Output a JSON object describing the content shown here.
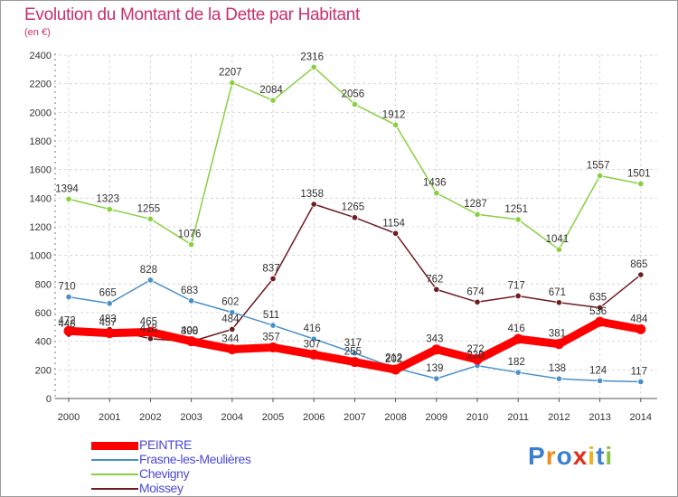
{
  "header": {
    "title": "Evolution du Montant de la Dette par Habitant",
    "subtitle": "(en €)"
  },
  "brand": {
    "text": "Proxiti"
  },
  "colors": {
    "title": "#c8306e",
    "legend_text": "#4a4ad8",
    "PEINTRE": "#ff0000",
    "Frasne-les-Meulières": "#4a90c8",
    "Chevigny": "#88d040",
    "Moissey": "#6e1c20"
  },
  "chart_data": {
    "type": "line",
    "categories": [
      "2000",
      "2001",
      "2002",
      "2003",
      "2004",
      "2005",
      "2006",
      "2007",
      "2008",
      "2009",
      "2010",
      "2011",
      "2012",
      "2013",
      "2014"
    ],
    "ylim": [
      0,
      2400
    ],
    "yticks": [
      0,
      200,
      400,
      600,
      800,
      1000,
      1200,
      1400,
      1600,
      1800,
      2000,
      2200,
      2400
    ],
    "grid": true,
    "legend_position": "bottom-left",
    "series": [
      {
        "name": "PEINTRE",
        "values": [
          472,
          457,
          465,
          400,
          344,
          357,
          307,
          255,
          202,
          343,
          272,
          416,
          381,
          536,
          484
        ]
      },
      {
        "name": "Frasne-les-Meulières",
        "values": [
          710,
          665,
          828,
          683,
          602,
          511,
          416,
          317,
          212,
          139,
          230,
          182,
          138,
          124,
          117
        ]
      },
      {
        "name": "Chevigny",
        "values": [
          1394,
          1323,
          1255,
          1076,
          2207,
          2084,
          2316,
          2056,
          1912,
          1436,
          1287,
          1251,
          1041,
          1557,
          1501
        ]
      },
      {
        "name": "Moissey",
        "values": [
          448,
          483,
          418,
          398,
          484,
          837,
          1358,
          1265,
          1154,
          762,
          674,
          717,
          671,
          635,
          865
        ]
      }
    ]
  }
}
